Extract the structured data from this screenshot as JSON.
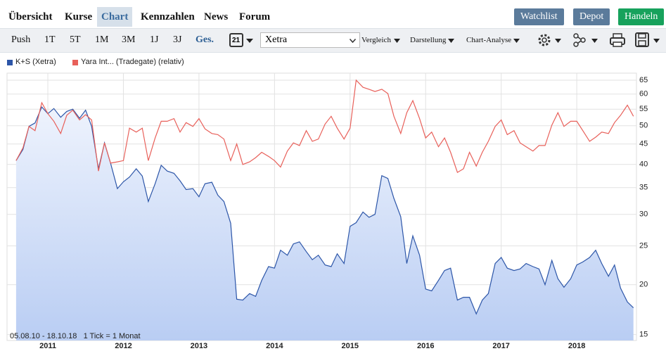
{
  "nav": {
    "tabs": [
      "Übersicht",
      "Kurse",
      "Chart",
      "Kennzahlen",
      "News",
      "Forum"
    ],
    "buttons": [
      "Watchlist",
      "Depot",
      "Handeln"
    ]
  },
  "toolbar": {
    "periods": [
      "Push",
      "1T",
      "5T",
      "1M",
      "3M",
      "1J",
      "3J",
      "Ges."
    ],
    "calendar": "21",
    "exchange": "Xetra",
    "menus": [
      "Vergleich",
      "Darstellung",
      "Chart-Analyse"
    ]
  },
  "chart_data": {
    "type": "line",
    "log_scale": true,
    "grid": true,
    "annotation": "05.08.10 - 18.10.18   1 Tick = 1 Monat",
    "x": [
      2010.58,
      2010.67,
      2010.75,
      2010.83,
      2010.92,
      2011,
      2011.08,
      2011.17,
      2011.25,
      2011.33,
      2011.42,
      2011.5,
      2011.58,
      2011.67,
      2011.75,
      2011.83,
      2011.92,
      2012,
      2012.08,
      2012.17,
      2012.25,
      2012.33,
      2012.42,
      2012.5,
      2012.58,
      2012.67,
      2012.75,
      2012.83,
      2012.92,
      2013,
      2013.08,
      2013.17,
      2013.25,
      2013.33,
      2013.42,
      2013.5,
      2013.58,
      2013.67,
      2013.75,
      2013.83,
      2013.92,
      2014,
      2014.08,
      2014.17,
      2014.25,
      2014.33,
      2014.42,
      2014.5,
      2014.58,
      2014.67,
      2014.75,
      2014.83,
      2014.92,
      2015,
      2015.08,
      2015.17,
      2015.25,
      2015.33,
      2015.42,
      2015.5,
      2015.58,
      2015.67,
      2015.75,
      2015.83,
      2015.92,
      2016,
      2016.08,
      2016.17,
      2016.25,
      2016.33,
      2016.42,
      2016.5,
      2016.58,
      2016.67,
      2016.75,
      2016.83,
      2016.92,
      2017,
      2017.08,
      2017.17,
      2017.25,
      2017.33,
      2017.42,
      2017.5,
      2017.58,
      2017.67,
      2017.75,
      2017.83,
      2017.92,
      2018,
      2018.08,
      2018.17,
      2018.25,
      2018.33,
      2018.42,
      2018.5,
      2018.58,
      2018.67,
      2018.75
    ],
    "series": [
      {
        "name": "K+S (Xetra)",
        "color": "#2d56a8",
        "area": true,
        "values": [
          40.9,
          43.6,
          49.8,
          50.8,
          55.7,
          53.6,
          55.2,
          52.5,
          54.3,
          55.0,
          52.2,
          54.7,
          49.8,
          39.0,
          45.3,
          40.3,
          34.8,
          36.2,
          37.2,
          39.0,
          37.4,
          32.3,
          35.8,
          39.8,
          38.5,
          38.0,
          36.4,
          34.6,
          34.8,
          33.2,
          35.8,
          36.1,
          33.5,
          32.3,
          28.5,
          18.4,
          18.3,
          19.0,
          18.7,
          20.5,
          22.2,
          22.0,
          24.4,
          23.7,
          25.3,
          25.6,
          24.2,
          23.1,
          23.7,
          22.4,
          22.2,
          23.9,
          22.6,
          28.0,
          28.6,
          30.4,
          29.5,
          30.0,
          37.5,
          36.9,
          32.9,
          29.6,
          22.6,
          26.5,
          23.7,
          19.5,
          19.3,
          20.5,
          21.7,
          22.0,
          18.3,
          18.6,
          18.6,
          16.9,
          18.3,
          19.0,
          22.6,
          23.4,
          22.0,
          21.7,
          21.9,
          22.6,
          22.2,
          21.9,
          20.0,
          23.0,
          20.7,
          19.7,
          20.7,
          22.4,
          22.8,
          23.4,
          24.4,
          22.6,
          21.0,
          22.4,
          19.6,
          18.1,
          17.5
        ]
      },
      {
        "name": "Yara Int... (Tradegate) (relativ)",
        "color": "#e8605a",
        "area": false,
        "values": [
          40.9,
          44.0,
          49.8,
          48.6,
          57.1,
          53.6,
          51.3,
          47.8,
          53.1,
          54.7,
          51.7,
          53.3,
          51.7,
          38.5,
          45.3,
          40.3,
          40.6,
          40.9,
          49.3,
          48.2,
          49.3,
          40.9,
          46.6,
          51.3,
          51.3,
          52.1,
          48.2,
          50.9,
          49.8,
          52.1,
          49.1,
          47.8,
          47.5,
          46.3,
          40.9,
          45.0,
          40.0,
          40.6,
          41.6,
          42.9,
          41.9,
          40.9,
          39.4,
          43.2,
          45.3,
          44.6,
          48.6,
          45.7,
          46.3,
          50.5,
          52.8,
          49.3,
          46.3,
          49.3,
          65.0,
          62.4,
          61.7,
          60.9,
          61.7,
          60.2,
          52.8,
          47.8,
          53.9,
          57.8,
          52.1,
          46.6,
          48.2,
          44.3,
          46.6,
          42.9,
          38.2,
          39.0,
          42.9,
          39.6,
          42.9,
          45.7,
          49.8,
          51.7,
          47.5,
          48.6,
          45.3,
          44.3,
          43.2,
          44.6,
          44.6,
          50.2,
          53.9,
          49.8,
          51.3,
          51.3,
          48.6,
          45.7,
          46.8,
          48.2,
          47.8,
          50.9,
          53.1,
          56.3,
          52.8
        ]
      }
    ],
    "xlim": [
      2010.46,
      2018.79
    ],
    "xticks": [
      2011,
      2012,
      2013,
      2014,
      2015,
      2016,
      2017,
      2018
    ],
    "ylim": [
      14.5,
      67.7
    ],
    "yticks": [
      15,
      20,
      25,
      30,
      35,
      40,
      45,
      50,
      55,
      60,
      65
    ]
  }
}
